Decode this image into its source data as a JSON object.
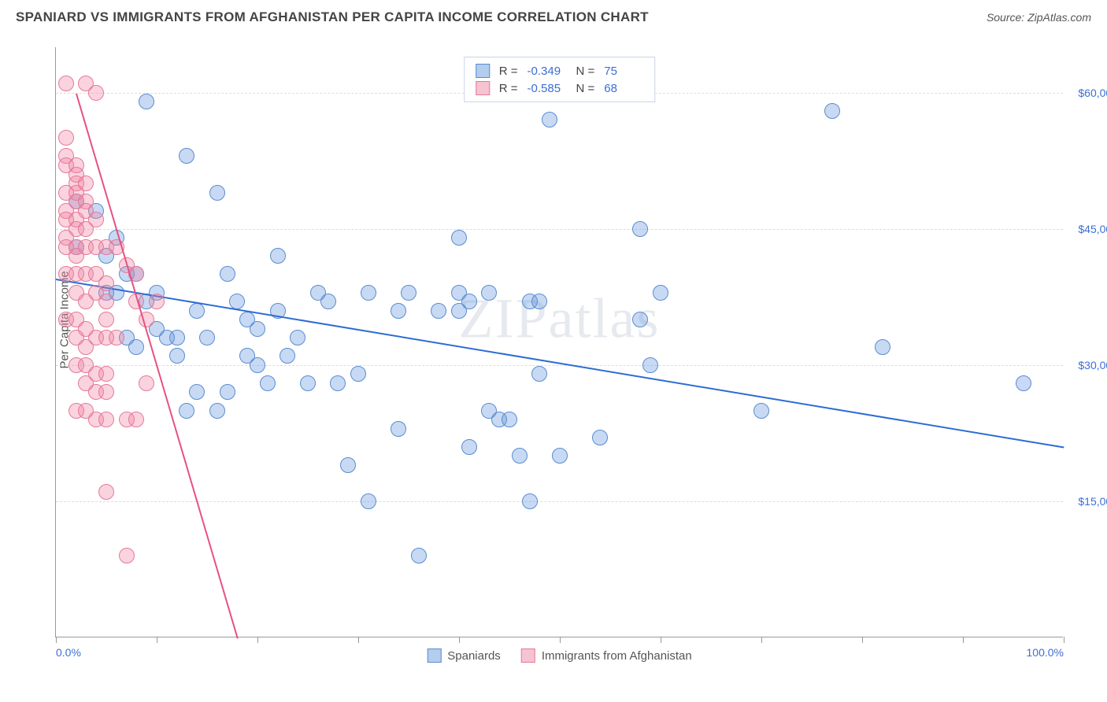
{
  "header": {
    "title": "SPANIARD VS IMMIGRANTS FROM AFGHANISTAN PER CAPITA INCOME CORRELATION CHART",
    "source": "Source: ZipAtlas.com"
  },
  "watermark": "ZIPatlas",
  "chart": {
    "type": "scatter",
    "ylabel": "Per Capita Income",
    "xlim": [
      0,
      100
    ],
    "ylim": [
      0,
      65000
    ],
    "xtick_positions": [
      0,
      10,
      20,
      30,
      40,
      50,
      60,
      70,
      80,
      90,
      100
    ],
    "xtick_labels": {
      "0": "0.0%",
      "100": "100.0%"
    },
    "ytick_positions": [
      15000,
      30000,
      45000,
      60000
    ],
    "ytick_labels": [
      "$15,000",
      "$30,000",
      "$45,000",
      "$60,000"
    ],
    "grid_color": "#dddddd",
    "background_color": "#ffffff",
    "plot_border_color": "#999999",
    "label_color": "#3b6fd4",
    "marker_radius": 10,
    "marker_opacity": 0.55,
    "series": [
      {
        "name": "Spaniards",
        "color_fill": "rgba(96,150,222,0.35)",
        "color_stroke": "#5a8cd0",
        "swatch_fill": "#b3cdee",
        "swatch_stroke": "#5a8cd0",
        "trend_color": "#2d6cd4",
        "trend": {
          "x1": 0,
          "y1": 39500,
          "x2": 100,
          "y2": 21000
        },
        "R": "-0.349",
        "N": "75",
        "points": [
          [
            9,
            59000
          ],
          [
            49,
            57000
          ],
          [
            77,
            58000
          ],
          [
            13,
            53000
          ],
          [
            2,
            48000
          ],
          [
            2,
            43000
          ],
          [
            5,
            42000
          ],
          [
            6,
            44000
          ],
          [
            7,
            40000
          ],
          [
            8,
            40000
          ],
          [
            9,
            37000
          ],
          [
            10,
            38000
          ],
          [
            7,
            33000
          ],
          [
            8,
            32000
          ],
          [
            10,
            34000
          ],
          [
            12,
            33000
          ],
          [
            13,
            25000
          ],
          [
            14,
            36000
          ],
          [
            15,
            33000
          ],
          [
            16,
            49000
          ],
          [
            17,
            40000
          ],
          [
            18,
            37000
          ],
          [
            19,
            35000
          ],
          [
            20,
            34000
          ],
          [
            21,
            28000
          ],
          [
            22,
            42000
          ],
          [
            22,
            36000
          ],
          [
            23,
            31000
          ],
          [
            24,
            33000
          ],
          [
            25,
            28000
          ],
          [
            26,
            38000
          ],
          [
            27,
            37000
          ],
          [
            28,
            28000
          ],
          [
            29,
            19000
          ],
          [
            30,
            29000
          ],
          [
            31,
            15000
          ],
          [
            34,
            23000
          ],
          [
            35,
            38000
          ],
          [
            36,
            9000
          ],
          [
            40,
            44000
          ],
          [
            40,
            36000
          ],
          [
            40,
            38000
          ],
          [
            44,
            24000
          ],
          [
            45,
            24000
          ],
          [
            46,
            20000
          ],
          [
            47,
            37000
          ],
          [
            48,
            37000
          ],
          [
            48,
            29000
          ],
          [
            50,
            20000
          ],
          [
            58,
            45000
          ],
          [
            58,
            35000
          ],
          [
            59,
            30000
          ],
          [
            60,
            38000
          ],
          [
            82,
            32000
          ],
          [
            70,
            25000
          ],
          [
            96,
            28000
          ],
          [
            5,
            38000
          ],
          [
            6,
            38000
          ],
          [
            4,
            47000
          ],
          [
            11,
            33000
          ],
          [
            12,
            31000
          ],
          [
            14,
            27000
          ],
          [
            16,
            25000
          ],
          [
            17,
            27000
          ],
          [
            19,
            31000
          ],
          [
            20,
            30000
          ],
          [
            41,
            21000
          ],
          [
            43,
            38000
          ],
          [
            41,
            37000
          ],
          [
            43,
            25000
          ],
          [
            54,
            22000
          ],
          [
            47,
            15000
          ],
          [
            38,
            36000
          ],
          [
            34,
            36000
          ],
          [
            31,
            38000
          ]
        ]
      },
      {
        "name": "Immigrants from Afghanistan",
        "color_fill": "rgba(240,130,160,0.35)",
        "color_stroke": "#e47a9a",
        "swatch_fill": "#f6c3d1",
        "swatch_stroke": "#e47a9a",
        "trend_color": "#e8517f",
        "trend": {
          "x1": 2,
          "y1": 60000,
          "x2": 18,
          "y2": 0
        },
        "R": "-0.585",
        "N": "68",
        "points": [
          [
            1,
            61000
          ],
          [
            3,
            61000
          ],
          [
            4,
            60000
          ],
          [
            1,
            55000
          ],
          [
            1,
            53000
          ],
          [
            1,
            52000
          ],
          [
            2,
            52000
          ],
          [
            2,
            50000
          ],
          [
            2,
            48000
          ],
          [
            3,
            50000
          ],
          [
            3,
            48000
          ],
          [
            1,
            47000
          ],
          [
            1,
            46000
          ],
          [
            2,
            46000
          ],
          [
            2,
            45000
          ],
          [
            3,
            47000
          ],
          [
            3,
            45000
          ],
          [
            4,
            46000
          ],
          [
            1,
            44000
          ],
          [
            1,
            43000
          ],
          [
            2,
            43000
          ],
          [
            2,
            42000
          ],
          [
            3,
            43000
          ],
          [
            4,
            43000
          ],
          [
            5,
            43000
          ],
          [
            6,
            43000
          ],
          [
            1,
            40000
          ],
          [
            2,
            40000
          ],
          [
            2,
            38000
          ],
          [
            3,
            40000
          ],
          [
            3,
            37000
          ],
          [
            4,
            40000
          ],
          [
            4,
            38000
          ],
          [
            5,
            39000
          ],
          [
            5,
            37000
          ],
          [
            7,
            41000
          ],
          [
            8,
            40000
          ],
          [
            1,
            35000
          ],
          [
            2,
            35000
          ],
          [
            2,
            33000
          ],
          [
            3,
            34000
          ],
          [
            3,
            32000
          ],
          [
            4,
            33000
          ],
          [
            5,
            35000
          ],
          [
            5,
            33000
          ],
          [
            6,
            33000
          ],
          [
            8,
            37000
          ],
          [
            9,
            35000
          ],
          [
            10,
            37000
          ],
          [
            2,
            30000
          ],
          [
            3,
            30000
          ],
          [
            3,
            28000
          ],
          [
            4,
            29000
          ],
          [
            4,
            27000
          ],
          [
            5,
            29000
          ],
          [
            5,
            27000
          ],
          [
            2,
            25000
          ],
          [
            3,
            25000
          ],
          [
            4,
            24000
          ],
          [
            5,
            24000
          ],
          [
            7,
            24000
          ],
          [
            8,
            24000
          ],
          [
            9,
            28000
          ],
          [
            5,
            16000
          ],
          [
            7,
            9000
          ],
          [
            1,
            49000
          ],
          [
            2,
            49000
          ],
          [
            2,
            51000
          ]
        ]
      }
    ],
    "legend_bottom": [
      {
        "label": "Spaniards",
        "fill": "#b3cdee",
        "stroke": "#5a8cd0"
      },
      {
        "label": "Immigrants from Afghanistan",
        "fill": "#f6c3d1",
        "stroke": "#e47a9a"
      }
    ]
  }
}
